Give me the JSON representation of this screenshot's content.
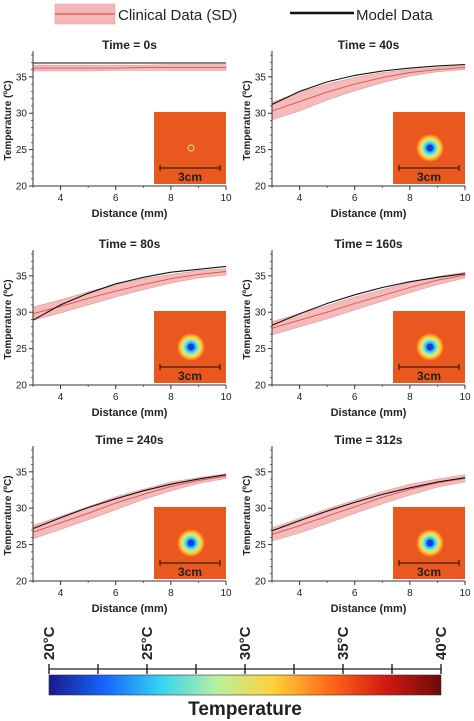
{
  "legend": {
    "clinical_label": "Clinical Data (SD)",
    "model_label": "Model Data",
    "clinical_color": "#d9534f",
    "clinical_band_color": "#f4b6b6",
    "model_color": "#111111"
  },
  "colorbar": {
    "title": "Temperature",
    "tick_labels": [
      "20°C",
      "25°C",
      "30°C",
      "35°C",
      "40°C"
    ],
    "colors": [
      "#1a1a8c",
      "#1565ff",
      "#35d4f0",
      "#b9f0a0",
      "#ffd23a",
      "#ff6a1a",
      "#d21a12",
      "#6e0a0a"
    ]
  },
  "inset": {
    "scale_label": "3cm",
    "background_color": "#e8581f"
  },
  "chart_data": [
    {
      "type": "line",
      "title": "Time = 0s",
      "xlabel": "Distance (mm)",
      "ylabel": "Temperature (ºC)",
      "xlim": [
        3,
        10
      ],
      "ylim": [
        20,
        38
      ],
      "xticks": [
        "4",
        "6",
        "8",
        "10"
      ],
      "yticks": [
        "20",
        "25",
        "30",
        "35"
      ],
      "x": [
        3,
        4,
        5,
        6,
        7,
        8,
        9,
        10
      ],
      "series": [
        {
          "name": "Model Data",
          "values": [
            36.9,
            36.9,
            36.9,
            36.9,
            36.9,
            36.9,
            36.9,
            36.9
          ]
        },
        {
          "name": "Clinical Data (SD)",
          "values": [
            36.2,
            36.2,
            36.2,
            36.2,
            36.3,
            36.3,
            36.3,
            36.3
          ],
          "lower": [
            35.8,
            35.8,
            35.8,
            35.9,
            35.9,
            35.9,
            35.9,
            35.9
          ],
          "upper": [
            36.6,
            36.6,
            36.6,
            36.6,
            36.6,
            36.7,
            36.7,
            36.7
          ]
        }
      ],
      "inset_hot_spot": false
    },
    {
      "type": "line",
      "title": "Time = 40s",
      "xlabel": "Distance (mm)",
      "ylabel": "Temperature (ºC)",
      "xlim": [
        3,
        10
      ],
      "ylim": [
        20,
        38
      ],
      "xticks": [
        "4",
        "6",
        "8",
        "10"
      ],
      "yticks": [
        "20",
        "25",
        "30",
        "35"
      ],
      "x": [
        3,
        4,
        5,
        6,
        7,
        8,
        9,
        10
      ],
      "series": [
        {
          "name": "Model Data",
          "values": [
            31.2,
            33.0,
            34.3,
            35.2,
            35.8,
            36.2,
            36.5,
            36.7
          ]
        },
        {
          "name": "Clinical Data (SD)",
          "values": [
            30.3,
            31.6,
            32.9,
            34.0,
            34.9,
            35.6,
            36.0,
            36.3
          ],
          "lower": [
            29.1,
            30.3,
            31.8,
            33.1,
            34.2,
            35.1,
            35.7,
            36.0
          ],
          "upper": [
            31.5,
            32.9,
            34.0,
            34.9,
            35.6,
            36.0,
            36.3,
            36.6
          ]
        }
      ],
      "inset_hot_spot": true
    },
    {
      "type": "line",
      "title": "Time = 80s",
      "xlabel": "Distance (mm)",
      "ylabel": "Temperature (ºC)",
      "xlim": [
        3,
        10
      ],
      "ylim": [
        20,
        38
      ],
      "xticks": [
        "4",
        "6",
        "8",
        "10"
      ],
      "yticks": [
        "20",
        "25",
        "30",
        "35"
      ],
      "x": [
        3,
        4,
        5,
        6,
        7,
        8,
        9,
        10
      ],
      "series": [
        {
          "name": "Model Data",
          "values": [
            28.9,
            31.0,
            32.6,
            33.9,
            34.8,
            35.5,
            35.9,
            36.3
          ]
        },
        {
          "name": "Clinical Data (SD)",
          "values": [
            29.8,
            30.8,
            31.9,
            32.9,
            33.8,
            34.6,
            35.2,
            35.6
          ],
          "lower": [
            28.9,
            29.9,
            31.0,
            32.1,
            33.1,
            34.0,
            34.7,
            35.1
          ],
          "upper": [
            30.7,
            31.7,
            32.8,
            33.8,
            34.6,
            35.2,
            35.7,
            36.0
          ]
        }
      ],
      "inset_hot_spot": true
    },
    {
      "type": "line",
      "title": "Time = 160s",
      "xlabel": "Distance (mm)",
      "ylabel": "Temperature (ºC)",
      "xlim": [
        3,
        10
      ],
      "ylim": [
        20,
        38
      ],
      "xticks": [
        "4",
        "6",
        "8",
        "10"
      ],
      "yticks": [
        "20",
        "25",
        "30",
        "35"
      ],
      "x": [
        3,
        4,
        5,
        6,
        7,
        8,
        9,
        10
      ],
      "series": [
        {
          "name": "Model Data",
          "values": [
            28.2,
            29.8,
            31.2,
            32.4,
            33.4,
            34.2,
            34.8,
            35.3
          ]
        },
        {
          "name": "Clinical Data (SD)",
          "values": [
            27.8,
            28.9,
            30.0,
            31.2,
            32.3,
            33.4,
            34.4,
            35.1
          ],
          "lower": [
            26.9,
            28.0,
            29.1,
            30.3,
            31.5,
            32.7,
            33.8,
            34.7
          ],
          "upper": [
            28.7,
            29.8,
            30.9,
            32.1,
            33.1,
            34.1,
            34.9,
            35.5
          ]
        }
      ],
      "inset_hot_spot": true
    },
    {
      "type": "line",
      "title": "Time = 240s",
      "xlabel": "Distance (mm)",
      "ylabel": "Temperature (ºC)",
      "xlim": [
        3,
        10
      ],
      "ylim": [
        20,
        38
      ],
      "xticks": [
        "4",
        "6",
        "8",
        "10"
      ],
      "yticks": [
        "20",
        "25",
        "30",
        "35"
      ],
      "x": [
        3,
        4,
        5,
        6,
        7,
        8,
        9,
        10
      ],
      "series": [
        {
          "name": "Model Data",
          "values": [
            27.2,
            28.7,
            30.1,
            31.3,
            32.4,
            33.3,
            34.0,
            34.6
          ]
        },
        {
          "name": "Clinical Data (SD)",
          "values": [
            26.7,
            28.0,
            29.3,
            30.7,
            31.9,
            33.0,
            33.8,
            34.4
          ],
          "lower": [
            25.8,
            27.1,
            28.4,
            29.8,
            31.2,
            32.4,
            33.4,
            34.1
          ],
          "upper": [
            27.6,
            28.9,
            30.2,
            31.6,
            32.6,
            33.6,
            34.2,
            34.7
          ]
        }
      ],
      "inset_hot_spot": true
    },
    {
      "type": "line",
      "title": "Time = 312s",
      "xlabel": "Distance (mm)",
      "ylabel": "Temperature (ºC)",
      "xlim": [
        3,
        10
      ],
      "ylim": [
        20,
        38
      ],
      "xticks": [
        "4",
        "6",
        "8",
        "10"
      ],
      "yticks": [
        "20",
        "25",
        "30",
        "35"
      ],
      "x": [
        3,
        4,
        5,
        6,
        7,
        8,
        9,
        10
      ],
      "series": [
        {
          "name": "Model Data",
          "values": [
            26.9,
            28.3,
            29.6,
            30.8,
            31.9,
            32.8,
            33.6,
            34.2
          ]
        },
        {
          "name": "Clinical Data (SD)",
          "values": [
            26.4,
            27.6,
            28.9,
            30.2,
            31.5,
            32.6,
            33.5,
            34.1
          ],
          "lower": [
            25.5,
            26.6,
            27.9,
            29.3,
            30.6,
            31.8,
            32.9,
            33.6
          ],
          "upper": [
            27.3,
            28.6,
            29.9,
            31.1,
            32.3,
            33.3,
            34.0,
            34.6
          ]
        }
      ],
      "inset_hot_spot": true
    }
  ]
}
